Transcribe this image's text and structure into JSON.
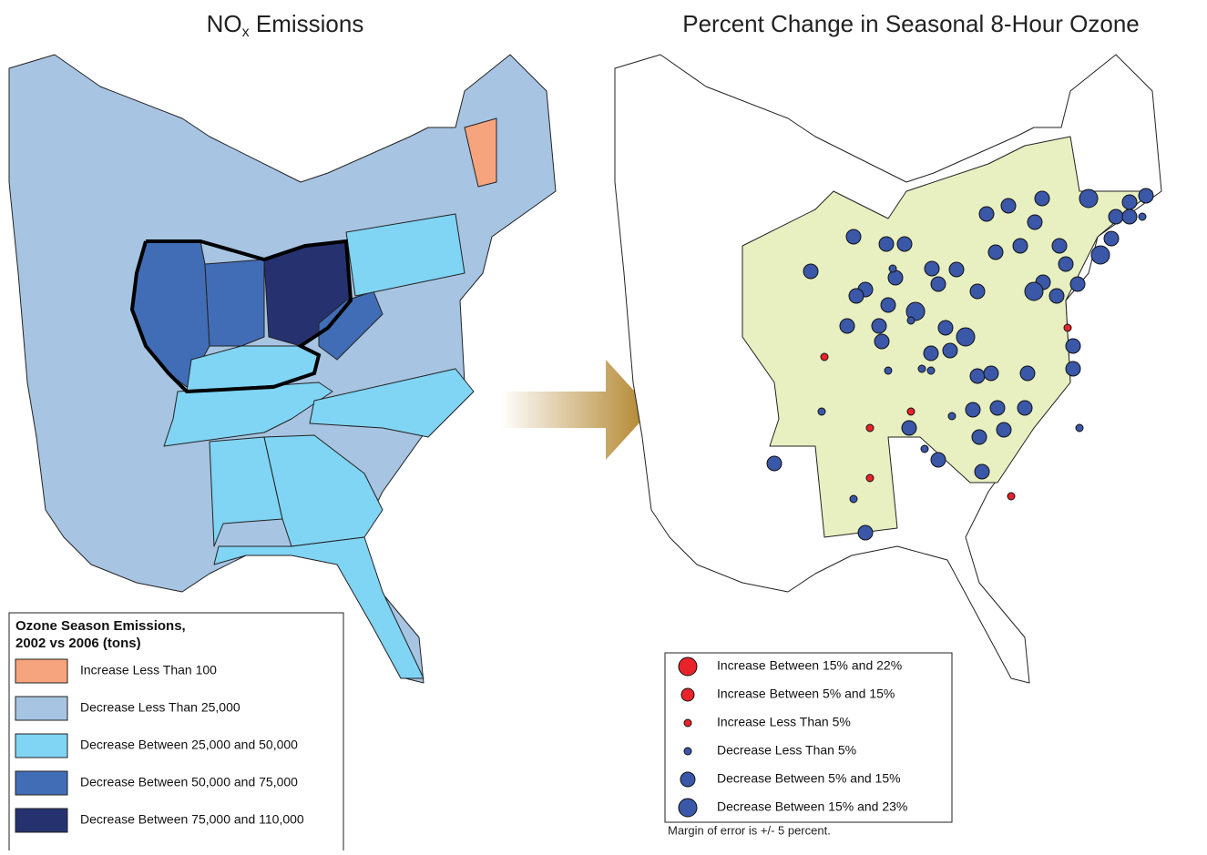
{
  "left_map": {
    "title": {
      "main": "NO",
      "subscript": "x",
      "rest": " Emissions"
    },
    "legend": {
      "title_lines": [
        "Ozone Season Emissions,",
        "2002 vs 2006 (tons)"
      ],
      "items": [
        {
          "label": "Increase Less Than 100",
          "color": "#f6a47e"
        },
        {
          "label": "Decrease Less Than 25,000",
          "color": "#a7c4e2"
        },
        {
          "label": "Decrease Between 25,000 and 50,000",
          "color": "#80d4f4"
        },
        {
          "label": "Decrease Between 50,000 and 75,000",
          "color": "#416db6"
        },
        {
          "label": "Decrease Between 75,000 and 110,000",
          "color": "#263270"
        }
      ]
    }
  },
  "right_map": {
    "title": "Percent Change in Seasonal 8-Hour Ozone",
    "legend": {
      "items": [
        {
          "label": "Increase Between 15% and 22%",
          "color": "#e8242a"
        },
        {
          "label": "Increase Between 5% and 15%",
          "color": "#e8242a"
        },
        {
          "label": "Increase Less Than 5%",
          "color": "#e8242a"
        },
        {
          "label": "Decrease Less Than 5%",
          "color": "#3a57a8"
        },
        {
          "label": "Decrease Between 5% and 15%",
          "color": "#3a57a8"
        },
        {
          "label": "Decrease Between 15% and 23%",
          "color": "#3a57a8"
        }
      ]
    },
    "note": "Margin of error is +/- 5 percent."
  }
}
